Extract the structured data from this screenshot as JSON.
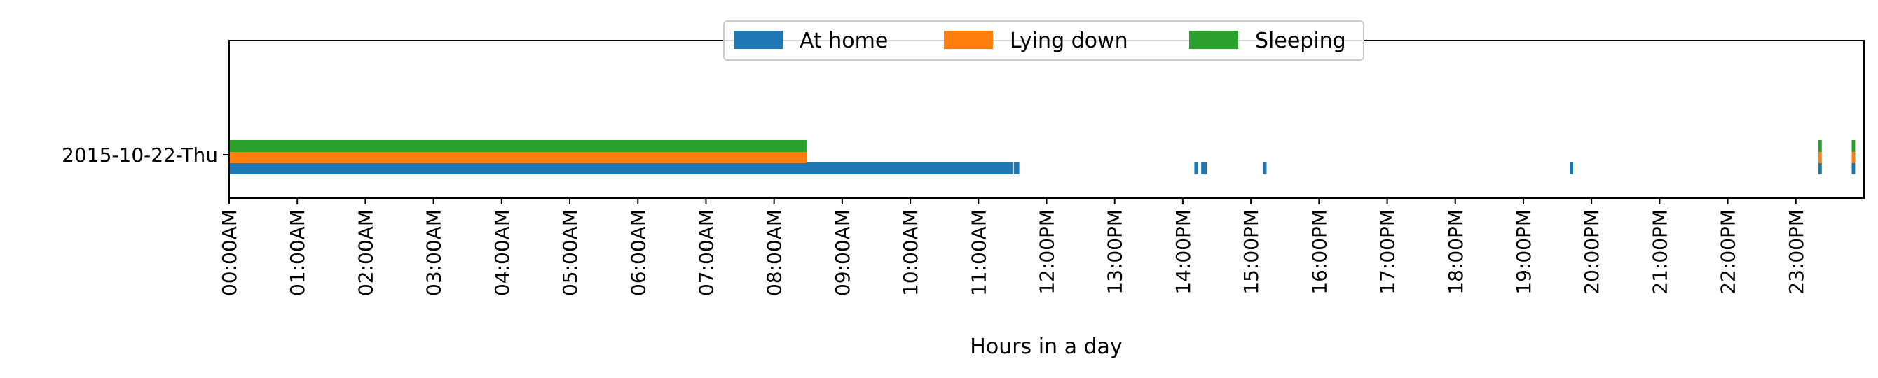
{
  "chart_data": {
    "type": "bar",
    "orientation": "horizontal",
    "xlabel": "Hours in a day",
    "xlim": [
      0,
      24
    ],
    "x_tick_labels": [
      "00:00AM",
      "01:00AM",
      "02:00AM",
      "03:00AM",
      "04:00AM",
      "05:00AM",
      "06:00AM",
      "07:00AM",
      "08:00AM",
      "09:00AM",
      "10:00AM",
      "11:00AM",
      "12:00PM",
      "13:00PM",
      "14:00PM",
      "15:00PM",
      "16:00PM",
      "17:00PM",
      "18:00PM",
      "19:00PM",
      "20:00PM",
      "21:00PM",
      "22:00PM",
      "23:00PM"
    ],
    "categories": [
      "2015-10-22-Thu"
    ],
    "legend_position": "top-center",
    "grid": false,
    "series": [
      {
        "name": "At home",
        "color": "#1f77b4",
        "intervals": [
          [
            0.0,
            11.5
          ],
          [
            11.52,
            11.6
          ],
          [
            14.17,
            14.22
          ],
          [
            14.27,
            14.35
          ],
          [
            15.18,
            15.23
          ],
          [
            19.68,
            19.73
          ],
          [
            23.33,
            23.38
          ],
          [
            23.82,
            23.87
          ]
        ]
      },
      {
        "name": "Lying down",
        "color": "#ff7f0e",
        "intervals": [
          [
            0.0,
            8.48
          ],
          [
            23.33,
            23.38
          ],
          [
            23.82,
            23.87
          ]
        ]
      },
      {
        "name": "Sleeping",
        "color": "#2ca02c",
        "intervals": [
          [
            0.0,
            8.48
          ],
          [
            23.33,
            23.38
          ],
          [
            23.82,
            23.87
          ]
        ]
      }
    ]
  }
}
